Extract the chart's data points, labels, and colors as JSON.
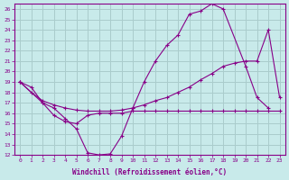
{
  "background_color": "#c8eaea",
  "grid_color": "#aacccc",
  "line_color": "#880088",
  "xlabel": "Windchill (Refroidissement éolien,°C)",
  "xlim": [
    -0.5,
    23.5
  ],
  "ylim": [
    12,
    26.5
  ],
  "yticks": [
    12,
    13,
    14,
    15,
    16,
    17,
    18,
    19,
    20,
    21,
    22,
    23,
    24,
    25,
    26
  ],
  "xticks": [
    0,
    1,
    2,
    3,
    4,
    5,
    6,
    7,
    8,
    9,
    10,
    11,
    12,
    13,
    14,
    15,
    16,
    17,
    18,
    19,
    20,
    21,
    22,
    23
  ],
  "series1_x": [
    0,
    1,
    2,
    3,
    4,
    5,
    6,
    7,
    8,
    9,
    10,
    11,
    12,
    13,
    14,
    15,
    16,
    17,
    18,
    20,
    21,
    22
  ],
  "series1_y": [
    19.0,
    18.5,
    17.0,
    16.5,
    15.5,
    14.5,
    12.2,
    12.0,
    12.1,
    13.8,
    16.5,
    19.0,
    21.0,
    22.5,
    23.5,
    25.5,
    25.8,
    26.5,
    26.0,
    20.5,
    17.5,
    16.5
  ],
  "series2_x": [
    0,
    1,
    2,
    3,
    4,
    5,
    6,
    7,
    8,
    9,
    10,
    11,
    12,
    13,
    14,
    15,
    16,
    17,
    18,
    19,
    20,
    21,
    22,
    23
  ],
  "series2_y": [
    19.0,
    18.0,
    17.2,
    16.8,
    16.5,
    16.3,
    16.2,
    16.2,
    16.2,
    16.3,
    16.5,
    16.8,
    17.2,
    17.5,
    18.0,
    18.5,
    19.2,
    19.8,
    20.5,
    20.8,
    21.0,
    21.0,
    24.0,
    17.5
  ],
  "series3_x": [
    0,
    2,
    3,
    4,
    5,
    6,
    7,
    8,
    9,
    10,
    11,
    12,
    13,
    14,
    15,
    16,
    17,
    18,
    19,
    20,
    21,
    22,
    23
  ],
  "series3_y": [
    19.0,
    17.0,
    15.8,
    15.2,
    15.0,
    15.8,
    16.0,
    16.0,
    16.0,
    16.2,
    16.2,
    16.2,
    16.2,
    16.2,
    16.2,
    16.2,
    16.2,
    16.2,
    16.2,
    16.2,
    16.2,
    16.2,
    16.2
  ]
}
